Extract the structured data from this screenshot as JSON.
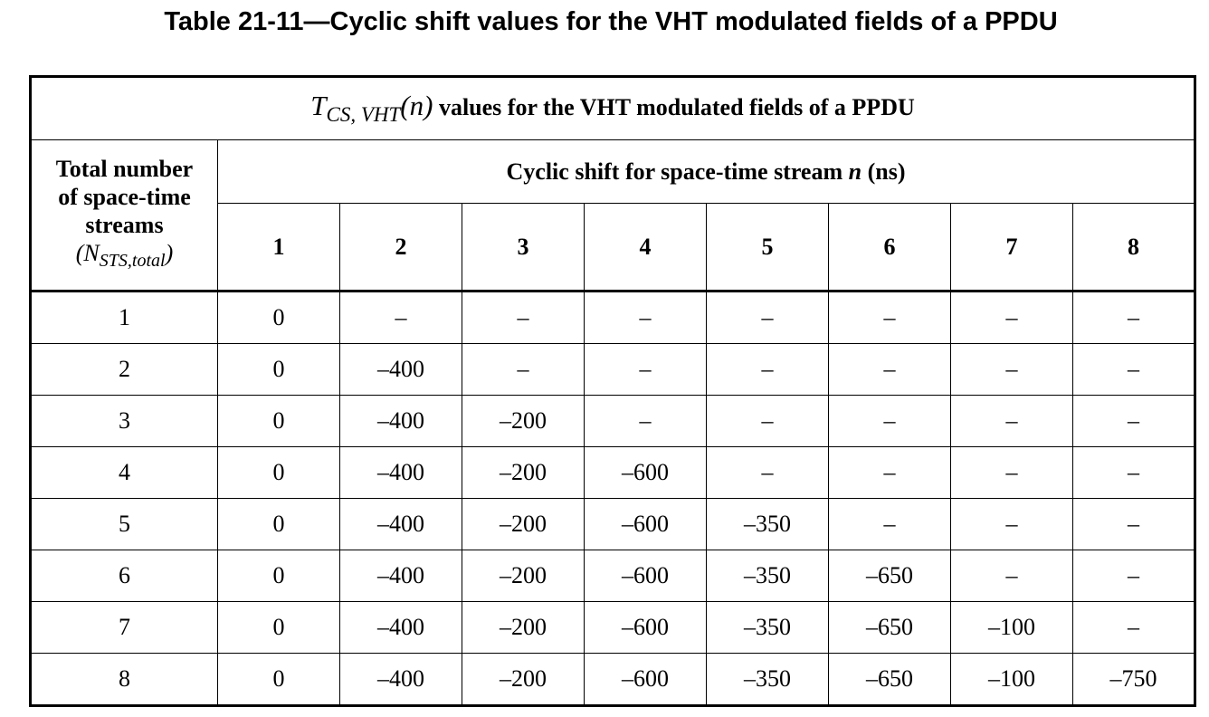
{
  "caption": "Table 21-11—Cyclic shift values for the VHT modulated fields of a PPDU",
  "table": {
    "title_symbol": "T",
    "title_symbol_sub": "CS, VHT",
    "title_symbol_arg": "(n)",
    "title_text": "values for the VHT modulated fields of a PPDU",
    "row_header_lines": [
      "Total number",
      "of space-time",
      "streams"
    ],
    "row_header_symbol": "N",
    "row_header_symbol_sub": "STS,total",
    "super_header": "Cyclic shift for space-time stream n (ns)",
    "columns": [
      "1",
      "2",
      "3",
      "4",
      "5",
      "6",
      "7",
      "8"
    ],
    "rows": [
      {
        "label": "1",
        "values": [
          "0",
          "–",
          "–",
          "–",
          "–",
          "–",
          "–",
          "–"
        ]
      },
      {
        "label": "2",
        "values": [
          "0",
          "–400",
          "–",
          "–",
          "–",
          "–",
          "–",
          "–"
        ]
      },
      {
        "label": "3",
        "values": [
          "0",
          "–400",
          "–200",
          "–",
          "–",
          "–",
          "–",
          "–"
        ]
      },
      {
        "label": "4",
        "values": [
          "0",
          "–400",
          "–200",
          "–600",
          "–",
          "–",
          "–",
          "–"
        ]
      },
      {
        "label": "5",
        "values": [
          "0",
          "–400",
          "–200",
          "–600",
          "–350",
          "–",
          "–",
          "–"
        ]
      },
      {
        "label": "6",
        "values": [
          "0",
          "–400",
          "–200",
          "–600",
          "–350",
          "–650",
          "–",
          "–"
        ]
      },
      {
        "label": "7",
        "values": [
          "0",
          "–400",
          "–200",
          "–600",
          "–350",
          "–650",
          "–100",
          "–"
        ]
      },
      {
        "label": "8",
        "values": [
          "0",
          "–400",
          "–200",
          "–600",
          "–350",
          "–650",
          "–100",
          "–750"
        ]
      }
    ]
  }
}
